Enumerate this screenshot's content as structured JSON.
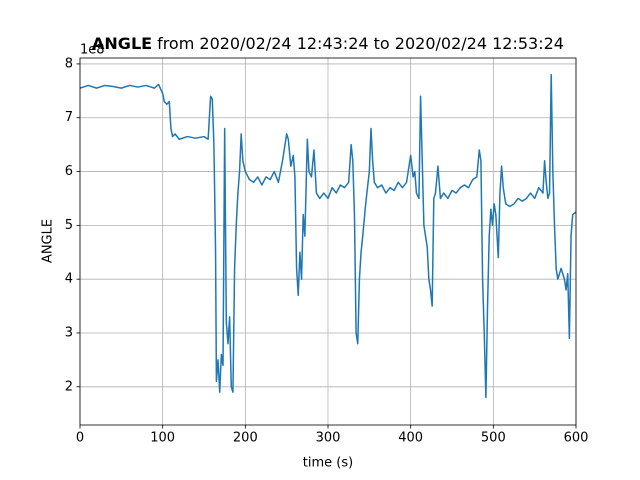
{
  "chart_data": {
    "type": "line",
    "title_bold": "ANGLE",
    "title_rest": "from 2020/02/24 12:43:24 to 2020/02/24 12:53:24",
    "x_label": "time (s)",
    "y_label": "ANGLE",
    "y_offset_label": "1e8",
    "grid": true,
    "xlim": [
      0,
      600
    ],
    "xticks": [
      0,
      100,
      200,
      300,
      400,
      500,
      600
    ],
    "ylim": [
      1.29,
      8.11
    ],
    "yticks": [
      2,
      3,
      4,
      5,
      6,
      7,
      8
    ],
    "x": [
      0,
      10,
      20,
      30,
      40,
      50,
      60,
      70,
      80,
      90,
      95,
      100,
      102,
      105,
      108,
      110,
      112,
      115,
      120,
      130,
      140,
      150,
      155,
      158,
      160,
      162,
      164,
      165,
      167,
      169,
      171,
      173,
      175,
      177,
      179,
      181,
      183,
      185,
      187,
      189,
      191,
      193,
      195,
      197,
      200,
      205,
      210,
      215,
      220,
      225,
      230,
      235,
      240,
      245,
      250,
      252,
      255,
      258,
      260,
      262,
      264,
      266,
      268,
      270,
      272,
      275,
      277,
      280,
      283,
      286,
      290,
      295,
      300,
      305,
      310,
      315,
      320,
      325,
      328,
      330,
      332,
      334,
      336,
      338,
      340,
      342,
      345,
      347,
      350,
      352,
      354,
      356,
      360,
      365,
      370,
      375,
      380,
      385,
      390,
      395,
      400,
      403,
      405,
      407,
      410,
      412,
      414,
      416,
      418,
      420,
      422,
      424,
      426,
      428,
      430,
      433,
      436,
      440,
      445,
      450,
      455,
      460,
      465,
      470,
      475,
      480,
      483,
      485,
      487,
      489,
      491,
      493,
      495,
      497,
      499,
      501,
      503,
      506,
      508,
      510,
      512,
      515,
      520,
      525,
      530,
      535,
      540,
      545,
      550,
      555,
      560,
      562,
      564,
      566,
      568,
      570,
      572,
      574,
      576,
      578,
      582,
      586,
      588,
      590,
      592,
      594,
      596,
      600
    ],
    "series": [
      {
        "name": "ANGLE",
        "color": "#1f77b4",
        "values": [
          7.55,
          7.6,
          7.55,
          7.6,
          7.58,
          7.55,
          7.6,
          7.57,
          7.6,
          7.55,
          7.62,
          7.45,
          7.3,
          7.25,
          7.3,
          6.8,
          6.65,
          6.7,
          6.6,
          6.65,
          6.62,
          6.65,
          6.6,
          7.4,
          7.35,
          6.5,
          4.5,
          2.1,
          2.5,
          1.9,
          2.6,
          2.4,
          6.8,
          3.2,
          2.8,
          3.3,
          2.0,
          1.9,
          4.2,
          5.0,
          5.6,
          6.0,
          6.7,
          6.2,
          6.0,
          5.85,
          5.8,
          5.9,
          5.75,
          5.9,
          5.85,
          6.0,
          5.8,
          6.2,
          6.7,
          6.6,
          6.1,
          6.3,
          5.9,
          4.2,
          3.7,
          4.5,
          4.0,
          5.2,
          4.8,
          6.6,
          6.0,
          5.9,
          6.4,
          5.6,
          5.5,
          5.6,
          5.5,
          5.7,
          5.6,
          5.75,
          5.7,
          5.8,
          6.5,
          6.2,
          5.2,
          3.0,
          2.8,
          4.0,
          4.5,
          4.8,
          5.3,
          5.6,
          6.0,
          6.8,
          6.2,
          5.8,
          5.7,
          5.75,
          5.6,
          5.7,
          5.65,
          5.8,
          5.7,
          5.8,
          6.3,
          5.9,
          6.0,
          5.6,
          5.5,
          7.4,
          6.2,
          5.0,
          4.8,
          4.6,
          4.0,
          3.8,
          3.5,
          5.5,
          5.6,
          6.1,
          5.5,
          5.6,
          5.5,
          5.65,
          5.6,
          5.7,
          5.75,
          5.7,
          5.85,
          5.9,
          6.4,
          6.2,
          4.0,
          3.0,
          1.8,
          3.5,
          4.8,
          5.3,
          5.0,
          5.4,
          5.2,
          4.4,
          5.6,
          6.1,
          5.7,
          5.4,
          5.35,
          5.4,
          5.5,
          5.45,
          5.5,
          5.6,
          5.5,
          5.7,
          5.6,
          6.2,
          5.8,
          5.5,
          5.6,
          7.8,
          6.0,
          5.0,
          4.2,
          4.0,
          4.2,
          4.0,
          3.8,
          4.1,
          2.9,
          4.8,
          5.2,
          5.25
        ]
      }
    ]
  }
}
